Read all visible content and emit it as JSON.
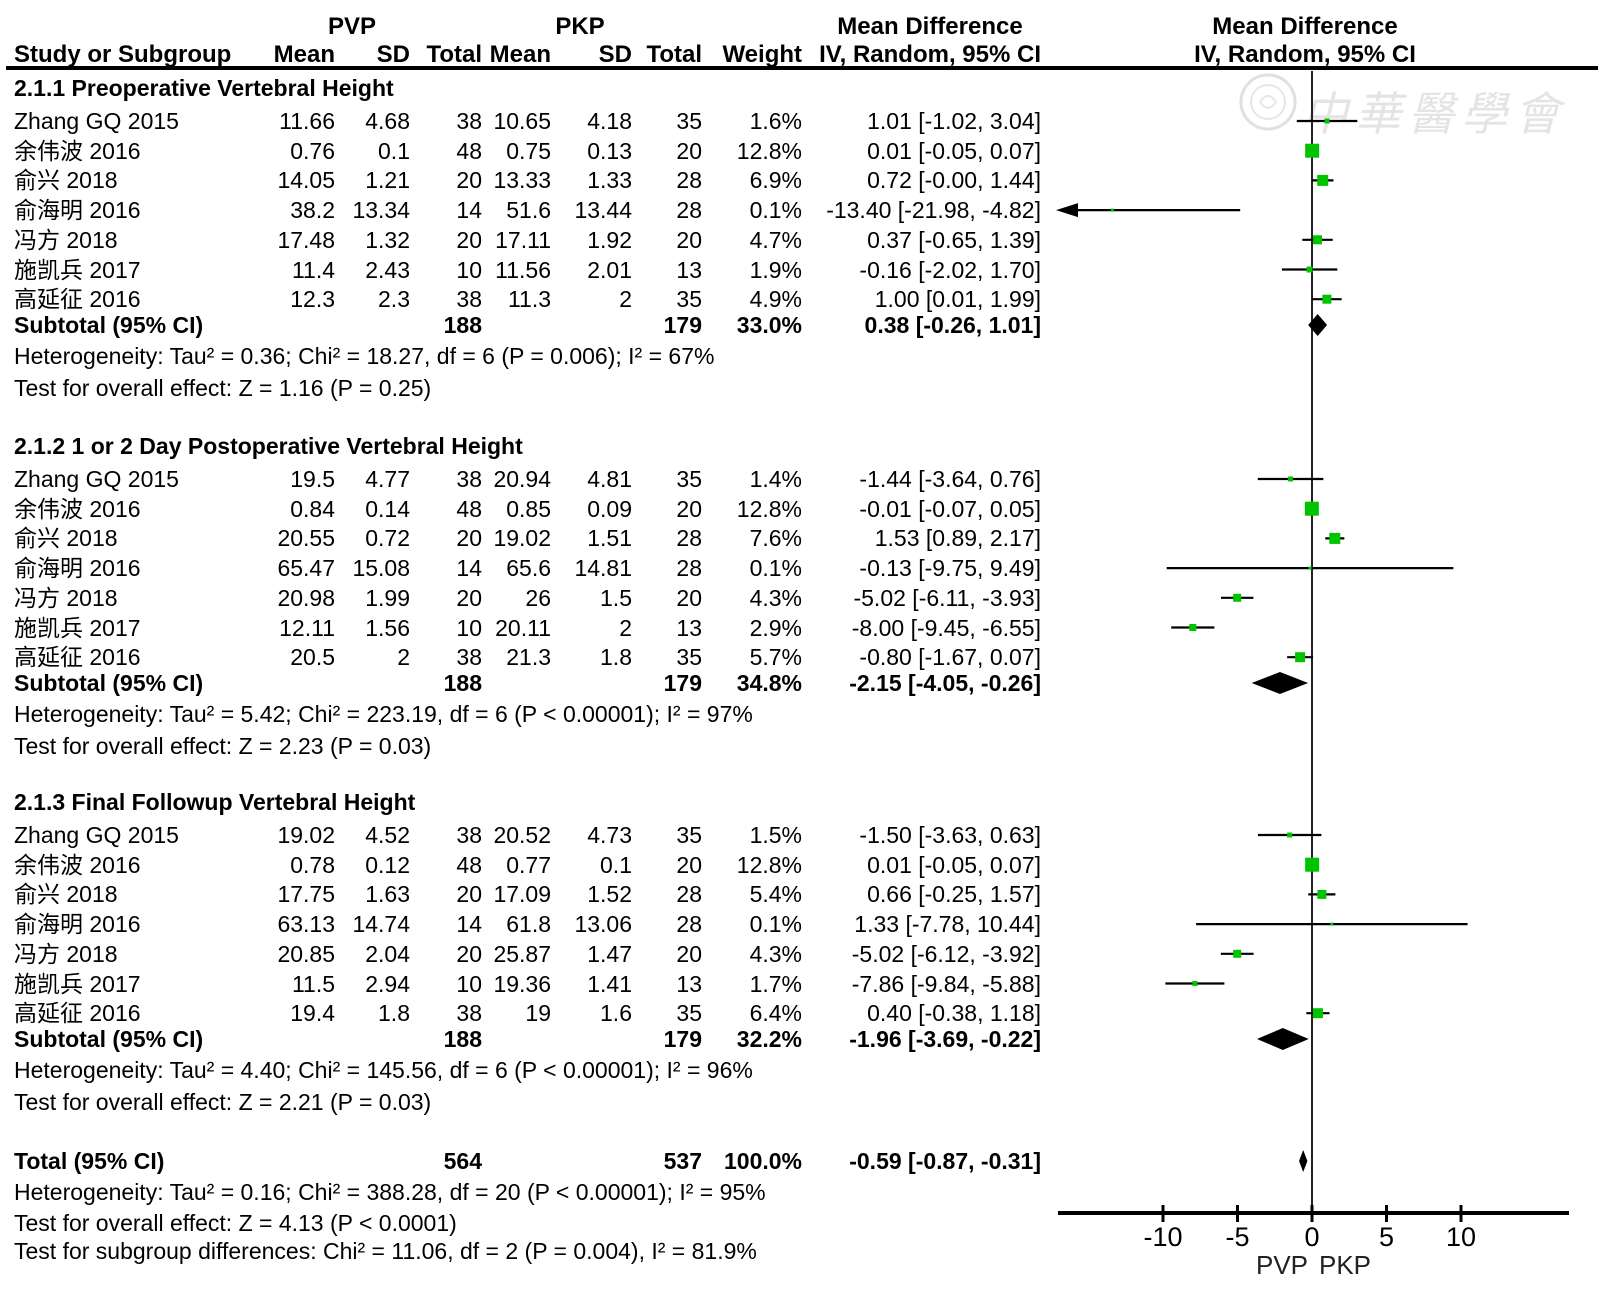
{
  "header": {
    "study": "Study or Subgroup",
    "group1": "PVP",
    "group2": "PKP",
    "cols": {
      "mean1": "Mean",
      "sd1": "SD",
      "total1": "Total",
      "mean2": "Mean",
      "sd2": "SD",
      "total2": "Total",
      "weight": "Weight",
      "ci": "IV, Random, 95% CI"
    },
    "md_left": "Mean Difference",
    "md_right_line1": "Mean Difference",
    "md_right_line2": "IV, Random, 95% CI"
  },
  "watermark": {
    "text": "中華醫學會",
    "seal": "chinese-medical-association-seal"
  },
  "colors": {
    "marker_green": "#00c400",
    "line_black": "#000000",
    "watermark_gray": "#e4e4e4"
  },
  "chart_data": {
    "type": "forest",
    "effect_measure": "Mean Difference",
    "method": "IV, Random, 95% CI",
    "axis": {
      "ticks": [
        -10,
        -5,
        0,
        5,
        10
      ],
      "min": -17,
      "max": 17.2,
      "favours_left": "PVP",
      "favours_right": "PKP"
    },
    "sections": [
      {
        "title": "2.1.1 Preoperative Vertebral Height",
        "studies": [
          {
            "label": "Zhang GQ 2015",
            "mean1": "11.66",
            "sd1": "4.68",
            "total1": "38",
            "mean2": "10.65",
            "sd2": "4.18",
            "total2": "35",
            "weight": "1.6%",
            "ci": "1.01 [-1.02, 3.04]",
            "est": 1.01,
            "lo": -1.02,
            "hi": 3.04,
            "w": 1.6
          },
          {
            "label": "余伟波 2016",
            "mean1": "0.76",
            "sd1": "0.1",
            "total1": "48",
            "mean2": "0.75",
            "sd2": "0.13",
            "total2": "20",
            "weight": "12.8%",
            "ci": "0.01 [-0.05, 0.07]",
            "est": 0.01,
            "lo": -0.05,
            "hi": 0.07,
            "w": 12.8
          },
          {
            "label": "俞兴 2018",
            "mean1": "14.05",
            "sd1": "1.21",
            "total1": "20",
            "mean2": "13.33",
            "sd2": "1.33",
            "total2": "28",
            "weight": "6.9%",
            "ci": "0.72 [-0.00, 1.44]",
            "est": 0.72,
            "lo": 0,
            "hi": 1.44,
            "w": 6.9
          },
          {
            "label": "俞海明 2016",
            "mean1": "38.2",
            "sd1": "13.34",
            "total1": "14",
            "mean2": "51.6",
            "sd2": "13.44",
            "total2": "28",
            "weight": "0.1%",
            "ci": "-13.40 [-21.98, -4.82]",
            "est": -13.4,
            "lo": -21.98,
            "hi": -4.82,
            "w": 0.1
          },
          {
            "label": "冯方 2018",
            "mean1": "17.48",
            "sd1": "1.32",
            "total1": "20",
            "mean2": "17.11",
            "sd2": "1.92",
            "total2": "20",
            "weight": "4.7%",
            "ci": "0.37 [-0.65, 1.39]",
            "est": 0.37,
            "lo": -0.65,
            "hi": 1.39,
            "w": 4.7
          },
          {
            "label": "施凯兵 2017",
            "mean1": "11.4",
            "sd1": "2.43",
            "total1": "10",
            "mean2": "11.56",
            "sd2": "2.01",
            "total2": "13",
            "weight": "1.9%",
            "ci": "-0.16 [-2.02, 1.70]",
            "est": -0.16,
            "lo": -2.02,
            "hi": 1.7,
            "w": 1.9
          },
          {
            "label": "高延征 2016",
            "mean1": "12.3",
            "sd1": "2.3",
            "total1": "38",
            "mean2": "11.3",
            "sd2": "2",
            "total2": "35",
            "weight": "4.9%",
            "ci": "1.00 [0.01, 1.99]",
            "est": 1.0,
            "lo": 0.01,
            "hi": 1.99,
            "w": 4.9
          }
        ],
        "subtotal": {
          "label": "Subtotal (95% CI)",
          "total1": "188",
          "total2": "179",
          "weight": "33.0%",
          "ci": "0.38 [-0.26, 1.01]",
          "est": 0.38,
          "lo": -0.26,
          "hi": 1.01
        },
        "heterogeneity": "Heterogeneity: Tau² = 0.36; Chi² = 18.27, df = 6 (P = 0.006); I² = 67%",
        "overall": "Test for overall effect: Z = 1.16 (P = 0.25)"
      },
      {
        "title": "2.1.2 1 or 2 Day Postoperative Vertebral Height",
        "studies": [
          {
            "label": "Zhang GQ 2015",
            "mean1": "19.5",
            "sd1": "4.77",
            "total1": "38",
            "mean2": "20.94",
            "sd2": "4.81",
            "total2": "35",
            "weight": "1.4%",
            "ci": "-1.44 [-3.64, 0.76]",
            "est": -1.44,
            "lo": -3.64,
            "hi": 0.76,
            "w": 1.4
          },
          {
            "label": "余伟波 2016",
            "mean1": "0.84",
            "sd1": "0.14",
            "total1": "48",
            "mean2": "0.85",
            "sd2": "0.09",
            "total2": "20",
            "weight": "12.8%",
            "ci": "-0.01 [-0.07, 0.05]",
            "est": -0.01,
            "lo": -0.07,
            "hi": 0.05,
            "w": 12.8
          },
          {
            "label": "俞兴 2018",
            "mean1": "20.55",
            "sd1": "0.72",
            "total1": "20",
            "mean2": "19.02",
            "sd2": "1.51",
            "total2": "28",
            "weight": "7.6%",
            "ci": "1.53 [0.89, 2.17]",
            "est": 1.53,
            "lo": 0.89,
            "hi": 2.17,
            "w": 7.6
          },
          {
            "label": "俞海明 2016",
            "mean1": "65.47",
            "sd1": "15.08",
            "total1": "14",
            "mean2": "65.6",
            "sd2": "14.81",
            "total2": "28",
            "weight": "0.1%",
            "ci": "-0.13 [-9.75, 9.49]",
            "est": -0.13,
            "lo": -9.75,
            "hi": 9.49,
            "w": 0.1
          },
          {
            "label": "冯方 2018",
            "mean1": "20.98",
            "sd1": "1.99",
            "total1": "20",
            "mean2": "26",
            "sd2": "1.5",
            "total2": "20",
            "weight": "4.3%",
            "ci": "-5.02 [-6.11, -3.93]",
            "est": -5.02,
            "lo": -6.11,
            "hi": -3.93,
            "w": 4.3
          },
          {
            "label": "施凯兵 2017",
            "mean1": "12.11",
            "sd1": "1.56",
            "total1": "10",
            "mean2": "20.11",
            "sd2": "2",
            "total2": "13",
            "weight": "2.9%",
            "ci": "-8.00 [-9.45, -6.55]",
            "est": -8.0,
            "lo": -9.45,
            "hi": -6.55,
            "w": 2.9
          },
          {
            "label": "高延征 2016",
            "mean1": "20.5",
            "sd1": "2",
            "total1": "38",
            "mean2": "21.3",
            "sd2": "1.8",
            "total2": "35",
            "weight": "5.7%",
            "ci": "-0.80 [-1.67, 0.07]",
            "est": -0.8,
            "lo": -1.67,
            "hi": 0.07,
            "w": 5.7
          }
        ],
        "subtotal": {
          "label": "Subtotal (95% CI)",
          "total1": "188",
          "total2": "179",
          "weight": "34.8%",
          "ci": "-2.15 [-4.05, -0.26]",
          "est": -2.15,
          "lo": -4.05,
          "hi": -0.26
        },
        "heterogeneity": "Heterogeneity: Tau² = 5.42; Chi² = 223.19, df = 6 (P < 0.00001); I² = 97%",
        "overall": "Test for overall effect: Z = 2.23 (P = 0.03)"
      },
      {
        "title": "2.1.3 Final Followup Vertebral Height",
        "studies": [
          {
            "label": "Zhang GQ 2015",
            "mean1": "19.02",
            "sd1": "4.52",
            "total1": "38",
            "mean2": "20.52",
            "sd2": "4.73",
            "total2": "35",
            "weight": "1.5%",
            "ci": "-1.50 [-3.63, 0.63]",
            "est": -1.5,
            "lo": -3.63,
            "hi": 0.63,
            "w": 1.5
          },
          {
            "label": "余伟波 2016",
            "mean1": "0.78",
            "sd1": "0.12",
            "total1": "48",
            "mean2": "0.77",
            "sd2": "0.1",
            "total2": "20",
            "weight": "12.8%",
            "ci": "0.01 [-0.05, 0.07]",
            "est": 0.01,
            "lo": -0.05,
            "hi": 0.07,
            "w": 12.8
          },
          {
            "label": "俞兴 2018",
            "mean1": "17.75",
            "sd1": "1.63",
            "total1": "20",
            "mean2": "17.09",
            "sd2": "1.52",
            "total2": "28",
            "weight": "5.4%",
            "ci": "0.66 [-0.25, 1.57]",
            "est": 0.66,
            "lo": -0.25,
            "hi": 1.57,
            "w": 5.4
          },
          {
            "label": "俞海明 2016",
            "mean1": "63.13",
            "sd1": "14.74",
            "total1": "14",
            "mean2": "61.8",
            "sd2": "13.06",
            "total2": "28",
            "weight": "0.1%",
            "ci": "1.33 [-7.78, 10.44]",
            "est": 1.33,
            "lo": -7.78,
            "hi": 10.44,
            "w": 0.1
          },
          {
            "label": "冯方 2018",
            "mean1": "20.85",
            "sd1": "2.04",
            "total1": "20",
            "mean2": "25.87",
            "sd2": "1.47",
            "total2": "20",
            "weight": "4.3%",
            "ci": "-5.02 [-6.12, -3.92]",
            "est": -5.02,
            "lo": -6.12,
            "hi": -3.92,
            "w": 4.3
          },
          {
            "label": "施凯兵 2017",
            "mean1": "11.5",
            "sd1": "2.94",
            "total1": "10",
            "mean2": "19.36",
            "sd2": "1.41",
            "total2": "13",
            "weight": "1.7%",
            "ci": "-7.86 [-9.84, -5.88]",
            "est": -7.86,
            "lo": -9.84,
            "hi": -5.88,
            "w": 1.7
          },
          {
            "label": "高延征 2016",
            "mean1": "19.4",
            "sd1": "1.8",
            "total1": "38",
            "mean2": "19",
            "sd2": "1.6",
            "total2": "35",
            "weight": "6.4%",
            "ci": "0.40 [-0.38, 1.18]",
            "est": 0.4,
            "lo": -0.38,
            "hi": 1.18,
            "w": 6.4
          }
        ],
        "subtotal": {
          "label": "Subtotal (95% CI)",
          "total1": "188",
          "total2": "179",
          "weight": "32.2%",
          "ci": "-1.96 [-3.69, -0.22]",
          "est": -1.96,
          "lo": -3.69,
          "hi": -0.22
        },
        "heterogeneity": "Heterogeneity: Tau² = 4.40; Chi² = 145.56, df = 6 (P < 0.00001); I² = 96%",
        "overall": "Test for overall effect: Z = 2.21 (P = 0.03)"
      }
    ],
    "total": {
      "label": "Total (95% CI)",
      "total1": "564",
      "total2": "537",
      "weight": "100.0%",
      "ci": "-0.59 [-0.87, -0.31]",
      "est": -0.59,
      "lo": -0.87,
      "hi": -0.31,
      "heterogeneity": "Heterogeneity: Tau² = 0.16; Chi² = 388.28, df = 20 (P < 0.00001); I² = 95%",
      "overall": "Test for overall effect: Z = 4.13 (P < 0.0001)",
      "subgroup": "Test for subgroup differences: Chi² = 11.06, df = 2 (P = 0.004), I² = 81.9%"
    }
  }
}
